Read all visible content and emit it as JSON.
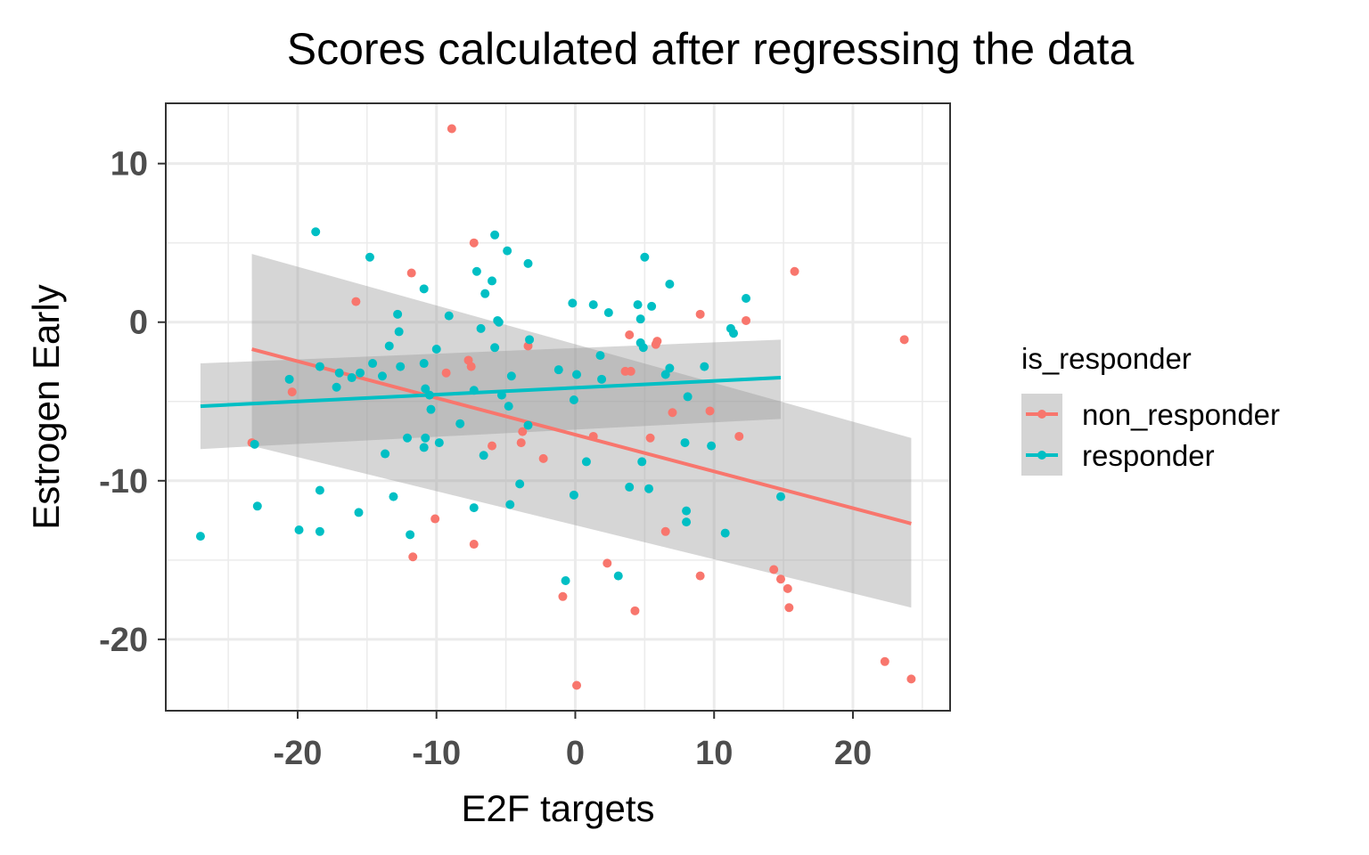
{
  "chart_data": {
    "type": "scatter",
    "title": "Scores calculated after regressing the data",
    "xlabel": "E2F targets",
    "ylabel": "Estrogen Early",
    "xlim": [
      -29.5,
      27
    ],
    "ylim": [
      -24.5,
      13.8
    ],
    "x_ticks": [
      -20,
      -10,
      0,
      10,
      20
    ],
    "y_ticks": [
      10,
      0,
      -10,
      -20
    ],
    "x_tick_labels": [
      "-20",
      "-10",
      "0",
      "10",
      "20"
    ],
    "y_tick_labels": [
      "10",
      "0",
      "-10",
      "-20"
    ],
    "grid": true,
    "legend": {
      "title": "is_responder",
      "position": "right"
    },
    "colors": {
      "non_responder": "#F8766D",
      "responder": "#00BFC4",
      "ribbon": "#999999"
    },
    "series": [
      {
        "name": "non_responder",
        "color": "#F8766D",
        "points": [
          [
            -8.9,
            12.2
          ],
          [
            -7.3,
            5.0
          ],
          [
            -15.8,
            1.3
          ],
          [
            -11.8,
            3.1
          ],
          [
            -20.4,
            -4.4
          ],
          [
            -23.3,
            -7.6
          ],
          [
            -9.3,
            -3.2
          ],
          [
            -7.7,
            -2.4
          ],
          [
            -7.5,
            -2.8
          ],
          [
            -3.4,
            -1.5
          ],
          [
            3.9,
            -0.8
          ],
          [
            5.9,
            -1.2
          ],
          [
            5.8,
            -1.4
          ],
          [
            9.0,
            0.5
          ],
          [
            12.3,
            0.1
          ],
          [
            3.6,
            -3.1
          ],
          [
            4.0,
            -3.1
          ],
          [
            7.0,
            -5.7
          ],
          [
            9.7,
            -5.6
          ],
          [
            11.8,
            -7.2
          ],
          [
            1.3,
            -7.2
          ],
          [
            5.4,
            -7.3
          ],
          [
            -6.0,
            -7.8
          ],
          [
            -3.9,
            -7.6
          ],
          [
            -3.8,
            -6.9
          ],
          [
            -2.3,
            -8.6
          ],
          [
            -10.1,
            -12.4
          ],
          [
            -11.7,
            -14.8
          ],
          [
            -7.3,
            -14.0
          ],
          [
            2.3,
            -15.2
          ],
          [
            -0.9,
            -17.3
          ],
          [
            4.3,
            -18.2
          ],
          [
            0.1,
            -22.9
          ],
          [
            6.5,
            -13.2
          ],
          [
            9.0,
            -16.0
          ],
          [
            14.3,
            -15.6
          ],
          [
            14.8,
            -16.2
          ],
          [
            15.3,
            -16.8
          ],
          [
            15.4,
            -18.0
          ],
          [
            15.8,
            3.2
          ],
          [
            23.7,
            -1.1
          ],
          [
            22.3,
            -21.4
          ],
          [
            24.2,
            -22.5
          ]
        ],
        "fit": {
          "x": [
            -23.3,
            24.2
          ],
          "y": [
            -1.7,
            -12.7
          ],
          "ci_lower": [
            -7.8,
            -18.0
          ],
          "ci_upper": [
            4.3,
            -7.3
          ]
        }
      },
      {
        "name": "responder",
        "color": "#00BFC4",
        "points": [
          [
            -18.7,
            5.7
          ],
          [
            -14.8,
            4.1
          ],
          [
            -5.8,
            5.5
          ],
          [
            -4.9,
            4.5
          ],
          [
            -3.4,
            3.7
          ],
          [
            -7.1,
            3.2
          ],
          [
            -6.0,
            2.6
          ],
          [
            -6.5,
            1.8
          ],
          [
            -10.9,
            2.1
          ],
          [
            -12.8,
            0.5
          ],
          [
            -9.1,
            0.4
          ],
          [
            -12.7,
            -0.6
          ],
          [
            -6.8,
            -0.4
          ],
          [
            -5.6,
            0.1
          ],
          [
            -5.5,
            0.0
          ],
          [
            -13.4,
            -1.5
          ],
          [
            -10.0,
            -1.7
          ],
          [
            -5.8,
            -1.6
          ],
          [
            -3.3,
            -1.1
          ],
          [
            -0.2,
            1.2
          ],
          [
            1.3,
            1.1
          ],
          [
            2.4,
            0.6
          ],
          [
            4.5,
            1.1
          ],
          [
            4.7,
            0.2
          ],
          [
            5.5,
            1.0
          ],
          [
            5.0,
            4.1
          ],
          [
            6.8,
            2.4
          ],
          [
            4.7,
            -1.3
          ],
          [
            4.9,
            -1.6
          ],
          [
            12.3,
            1.5
          ],
          [
            11.2,
            -0.4
          ],
          [
            11.4,
            -0.7
          ],
          [
            9.3,
            -2.8
          ],
          [
            6.8,
            -2.9
          ],
          [
            6.5,
            -3.3
          ],
          [
            1.8,
            -2.1
          ],
          [
            1.9,
            -3.6
          ],
          [
            -1.2,
            -3.0
          ],
          [
            0.1,
            -3.3
          ],
          [
            -4.6,
            -3.4
          ],
          [
            -20.6,
            -3.6
          ],
          [
            -18.4,
            -2.8
          ],
          [
            -17.0,
            -3.2
          ],
          [
            -16.1,
            -3.5
          ],
          [
            -15.5,
            -3.2
          ],
          [
            -14.6,
            -2.6
          ],
          [
            -13.9,
            -3.4
          ],
          [
            -12.6,
            -2.8
          ],
          [
            -10.9,
            -2.6
          ],
          [
            -17.2,
            -4.1
          ],
          [
            -10.8,
            -4.2
          ],
          [
            -10.5,
            -4.6
          ],
          [
            -7.3,
            -4.3
          ],
          [
            -5.3,
            -4.6
          ],
          [
            -10.4,
            -5.5
          ],
          [
            -0.1,
            -4.9
          ],
          [
            -4.8,
            -5.3
          ],
          [
            8.1,
            -4.7
          ],
          [
            -12.1,
            -7.3
          ],
          [
            -10.8,
            -7.3
          ],
          [
            -10.9,
            -7.9
          ],
          [
            -9.8,
            -7.6
          ],
          [
            -8.3,
            -6.4
          ],
          [
            -3.4,
            -6.5
          ],
          [
            -13.7,
            -8.3
          ],
          [
            -6.6,
            -8.4
          ],
          [
            -23.1,
            -7.7
          ],
          [
            0.8,
            -8.8
          ],
          [
            4.8,
            -8.8
          ],
          [
            7.9,
            -7.6
          ],
          [
            9.8,
            -7.8
          ],
          [
            -22.9,
            -11.6
          ],
          [
            -18.4,
            -10.6
          ],
          [
            -15.6,
            -12.0
          ],
          [
            -13.1,
            -11.0
          ],
          [
            -4.7,
            -11.5
          ],
          [
            -4.0,
            -10.2
          ],
          [
            -7.3,
            -11.7
          ],
          [
            -0.1,
            -10.9
          ],
          [
            3.9,
            -10.4
          ],
          [
            5.3,
            -10.5
          ],
          [
            8.0,
            -11.9
          ],
          [
            8.0,
            -12.6
          ],
          [
            10.8,
            -13.3
          ],
          [
            14.8,
            -11.0
          ],
          [
            -27.0,
            -13.5
          ],
          [
            -19.9,
            -13.1
          ],
          [
            -18.4,
            -13.2
          ],
          [
            -11.9,
            -13.4
          ],
          [
            -0.7,
            -16.3
          ],
          [
            3.1,
            -16.0
          ]
        ],
        "fit": {
          "x": [
            -27.0,
            14.8
          ],
          "y": [
            -5.3,
            -3.5
          ],
          "ci_lower": [
            -8.0,
            -6.1
          ],
          "ci_upper": [
            -2.6,
            -1.1
          ]
        }
      }
    ]
  }
}
